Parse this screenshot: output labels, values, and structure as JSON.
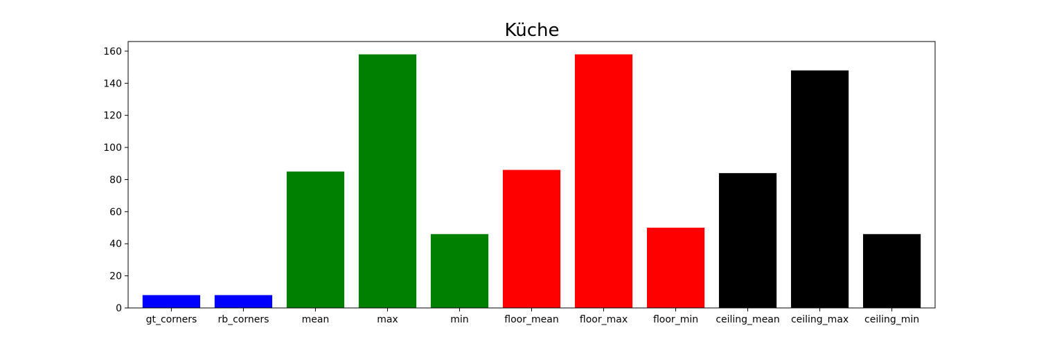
{
  "chart_data": {
    "type": "bar",
    "title": "Küche",
    "xlabel": "",
    "ylabel": "",
    "categories": [
      "gt_corners",
      "rb_corners",
      "mean",
      "max",
      "min",
      "floor_mean",
      "floor_max",
      "floor_min",
      "ceiling_mean",
      "ceiling_max",
      "ceiling_min"
    ],
    "values": [
      8,
      8,
      85,
      158,
      46,
      86,
      158,
      50,
      84,
      148,
      46
    ],
    "colors": [
      "#0000ff",
      "#0000ff",
      "#008000",
      "#008000",
      "#008000",
      "#ff0000",
      "#ff0000",
      "#ff0000",
      "#000000",
      "#000000",
      "#000000"
    ],
    "ylim": [
      0,
      166
    ],
    "yticks": [
      0,
      20,
      40,
      60,
      80,
      100,
      120,
      140,
      160
    ],
    "grid": false,
    "legend": false
  }
}
